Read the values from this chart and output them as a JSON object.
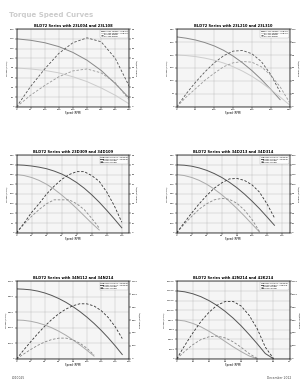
{
  "page_title": "Torque Speed Curves",
  "footer_left": "L010025",
  "footer_right": "December 2012",
  "page_bg": "#2a2a2a",
  "content_bg": "#ffffff",
  "header_bg": "#1a1a1a",
  "charts": [
    {
      "title": "BLD72 Series with 23L004 and 23L108",
      "xlabel": "Speed (RPM)",
      "ylabel_left": "Torque (oz-in)",
      "ylabel_right": "Power (Watts)",
      "legend": [
        "23L004 Torque - Unipolar",
        "23L108 Torque - Unipolar",
        "23L004 Power",
        "23L108 Power"
      ],
      "torque1": [
        [
          0,
          140
        ],
        [
          50,
          137
        ],
        [
          100,
          132
        ],
        [
          150,
          124
        ],
        [
          200,
          112
        ],
        [
          250,
          96
        ],
        [
          300,
          75
        ],
        [
          350,
          48
        ],
        [
          400,
          18
        ]
      ],
      "torque2": [
        [
          0,
          80
        ],
        [
          50,
          78
        ],
        [
          100,
          75
        ],
        [
          150,
          70
        ],
        [
          200,
          62
        ],
        [
          250,
          52
        ],
        [
          300,
          39
        ],
        [
          350,
          24
        ],
        [
          400,
          6
        ]
      ],
      "power1": [
        [
          0,
          0
        ],
        [
          50,
          21
        ],
        [
          100,
          39
        ],
        [
          150,
          55
        ],
        [
          200,
          66
        ],
        [
          250,
          71
        ],
        [
          300,
          67
        ],
        [
          350,
          50
        ],
        [
          400,
          21
        ]
      ],
      "power2": [
        [
          0,
          0
        ],
        [
          50,
          12
        ],
        [
          100,
          22
        ],
        [
          150,
          31
        ],
        [
          200,
          37
        ],
        [
          250,
          39
        ],
        [
          300,
          35
        ],
        [
          350,
          25
        ],
        [
          400,
          7
        ]
      ],
      "xlim": [
        0,
        400
      ],
      "ylim_left": [
        0,
        160
      ],
      "ylim_right": [
        0,
        80
      ],
      "torque_colors": [
        "#888888",
        "#cccccc"
      ],
      "power_colors": [
        "#555555",
        "#999999"
      ]
    },
    {
      "title": "BLD72 Series with 23L210 and 23L310",
      "xlabel": "Speed (RPM)",
      "ylabel_left": "Torque (oz-in)",
      "ylabel_right": "Power (Watts)",
      "legend": [
        "23L210 Torque - Unipolar",
        "23L310 Torque - Unipolar",
        "23L210 Power",
        "23L310 Power"
      ],
      "torque1": [
        [
          0,
          270
        ],
        [
          25,
          265
        ],
        [
          50,
          258
        ],
        [
          75,
          248
        ],
        [
          100,
          235
        ],
        [
          125,
          218
        ],
        [
          150,
          196
        ],
        [
          175,
          170
        ],
        [
          200,
          140
        ],
        [
          225,
          106
        ],
        [
          250,
          68
        ],
        [
          275,
          28
        ]
      ],
      "torque2": [
        [
          0,
          200
        ],
        [
          25,
          198
        ],
        [
          50,
          194
        ],
        [
          75,
          188
        ],
        [
          100,
          180
        ],
        [
          125,
          169
        ],
        [
          150,
          155
        ],
        [
          175,
          138
        ],
        [
          200,
          118
        ],
        [
          225,
          94
        ],
        [
          250,
          67
        ],
        [
          275,
          38
        ],
        [
          300,
          8
        ]
      ],
      "power1": [
        [
          0,
          0
        ],
        [
          25,
          20
        ],
        [
          50,
          38
        ],
        [
          75,
          54
        ],
        [
          100,
          68
        ],
        [
          125,
          79
        ],
        [
          150,
          86
        ],
        [
          175,
          87
        ],
        [
          200,
          82
        ],
        [
          225,
          70
        ],
        [
          250,
          50
        ],
        [
          275,
          23
        ]
      ],
      "power2": [
        [
          0,
          0
        ],
        [
          25,
          15
        ],
        [
          50,
          28
        ],
        [
          75,
          41
        ],
        [
          100,
          52
        ],
        [
          125,
          62
        ],
        [
          150,
          68
        ],
        [
          175,
          70
        ],
        [
          200,
          69
        ],
        [
          225,
          62
        ],
        [
          250,
          49
        ],
        [
          275,
          31
        ],
        [
          300,
          7
        ]
      ],
      "xlim": [
        0,
        300
      ],
      "ylim_left": [
        0,
        300
      ],
      "ylim_right": [
        0,
        120
      ],
      "torque_colors": [
        "#888888",
        "#cccccc"
      ],
      "power_colors": [
        "#555555",
        "#999999"
      ]
    },
    {
      "title": "BLD72 Series with 23D309 and 34D109",
      "xlabel": "Speed (RPM)",
      "ylabel_left": "Torque (oz-in)",
      "ylabel_right": "Power (Watts)",
      "legend": [
        "23D309 Torque - Unipolar",
        "34D109 Torque - Unipolar",
        "23D309 Power",
        "34D109 Power"
      ],
      "torque1": [
        [
          0,
          300
        ],
        [
          10,
          295
        ],
        [
          20,
          285
        ],
        [
          30,
          270
        ],
        [
          40,
          250
        ],
        [
          50,
          225
        ],
        [
          60,
          195
        ],
        [
          70,
          162
        ],
        [
          80,
          126
        ],
        [
          90,
          88
        ],
        [
          100,
          50
        ],
        [
          110,
          15
        ]
      ],
      "torque2": [
        [
          0,
          350
        ],
        [
          10,
          348
        ],
        [
          20,
          344
        ],
        [
          30,
          338
        ],
        [
          40,
          330
        ],
        [
          50,
          318
        ],
        [
          60,
          303
        ],
        [
          70,
          283
        ],
        [
          80,
          259
        ],
        [
          90,
          230
        ],
        [
          100,
          196
        ],
        [
          110,
          158
        ],
        [
          120,
          116
        ],
        [
          130,
          72
        ],
        [
          140,
          26
        ]
      ],
      "power1": [
        [
          0,
          0
        ],
        [
          10,
          9
        ],
        [
          20,
          17
        ],
        [
          30,
          24
        ],
        [
          40,
          30
        ],
        [
          50,
          34
        ],
        [
          60,
          34
        ],
        [
          70,
          34
        ],
        [
          80,
          30
        ],
        [
          90,
          24
        ],
        [
          100,
          15
        ],
        [
          110,
          5
        ]
      ],
      "power2": [
        [
          0,
          0
        ],
        [
          10,
          10
        ],
        [
          20,
          21
        ],
        [
          30,
          30
        ],
        [
          40,
          40
        ],
        [
          50,
          48
        ],
        [
          60,
          55
        ],
        [
          70,
          60
        ],
        [
          80,
          63
        ],
        [
          90,
          63
        ],
        [
          100,
          59
        ],
        [
          110,
          53
        ],
        [
          120,
          42
        ],
        [
          130,
          28
        ],
        [
          140,
          11
        ]
      ],
      "xlim": [
        0,
        150
      ],
      "ylim_left": [
        0,
        400
      ],
      "ylim_right": [
        0,
        80
      ],
      "torque_colors": [
        "#aaaaaa",
        "#555555"
      ],
      "power_colors": [
        "#888888",
        "#333333"
      ]
    },
    {
      "title": "BLD72 Series with 34D213 and 34D314",
      "xlabel": "Speed (RPM)",
      "ylabel_left": "Torque (oz-in)",
      "ylabel_right": "Power (Watts)",
      "legend": [
        "34D213 Torque - Unipolar",
        "34D314 Torque - Unipolar",
        "34D213 Power",
        "34D314 Power"
      ],
      "torque1": [
        [
          0,
          600
        ],
        [
          10,
          590
        ],
        [
          20,
          570
        ],
        [
          30,
          540
        ],
        [
          40,
          500
        ],
        [
          50,
          450
        ],
        [
          60,
          392
        ],
        [
          70,
          325
        ],
        [
          80,
          252
        ],
        [
          90,
          174
        ],
        [
          100,
          92
        ],
        [
          110,
          10
        ]
      ],
      "torque2": [
        [
          0,
          700
        ],
        [
          10,
          696
        ],
        [
          20,
          686
        ],
        [
          30,
          668
        ],
        [
          40,
          643
        ],
        [
          50,
          610
        ],
        [
          60,
          570
        ],
        [
          70,
          521
        ],
        [
          80,
          465
        ],
        [
          90,
          400
        ],
        [
          100,
          328
        ],
        [
          110,
          250
        ],
        [
          120,
          165
        ],
        [
          130,
          78
        ]
      ],
      "power1": [
        [
          0,
          0
        ],
        [
          10,
          18
        ],
        [
          20,
          34
        ],
        [
          30,
          49
        ],
        [
          40,
          60
        ],
        [
          50,
          68
        ],
        [
          60,
          71
        ],
        [
          70,
          69
        ],
        [
          80,
          61
        ],
        [
          90,
          47
        ],
        [
          100,
          28
        ],
        [
          110,
          3
        ]
      ],
      "power2": [
        [
          0,
          0
        ],
        [
          10,
          21
        ],
        [
          20,
          41
        ],
        [
          30,
          60
        ],
        [
          40,
          77
        ],
        [
          50,
          92
        ],
        [
          60,
          103
        ],
        [
          70,
          111
        ],
        [
          80,
          112
        ],
        [
          90,
          108
        ],
        [
          100,
          99
        ],
        [
          110,
          84
        ],
        [
          120,
          60
        ],
        [
          130,
          31
        ]
      ],
      "xlim": [
        0,
        150
      ],
      "ylim_left": [
        0,
        800
      ],
      "ylim_right": [
        0,
        160
      ],
      "torque_colors": [
        "#aaaaaa",
        "#555555"
      ],
      "power_colors": [
        "#888888",
        "#333333"
      ]
    },
    {
      "title": "BLD72 Series with 34N112 and 34N214",
      "xlabel": "Speed (RPM)",
      "ylabel_left": "Torque (oz-in)",
      "ylabel_right": "Power (Watts)",
      "legend": [
        "34N112 Torque - Unipolar",
        "34N214 Torque - Unipolar",
        "34N112 Power",
        "34N214 Power"
      ],
      "torque1": [
        [
          0,
          2500
        ],
        [
          10,
          2480
        ],
        [
          20,
          2420
        ],
        [
          30,
          2320
        ],
        [
          40,
          2180
        ],
        [
          50,
          2000
        ],
        [
          60,
          1780
        ],
        [
          70,
          1520
        ],
        [
          80,
          1225
        ],
        [
          90,
          900
        ],
        [
          100,
          550
        ],
        [
          110,
          180
        ]
      ],
      "torque2": [
        [
          0,
          4500
        ],
        [
          10,
          4480
        ],
        [
          20,
          4440
        ],
        [
          30,
          4360
        ],
        [
          40,
          4240
        ],
        [
          50,
          4080
        ],
        [
          60,
          3880
        ],
        [
          70,
          3640
        ],
        [
          80,
          3360
        ],
        [
          90,
          3040
        ],
        [
          100,
          2680
        ],
        [
          110,
          2280
        ],
        [
          120,
          1840
        ],
        [
          130,
          1360
        ],
        [
          140,
          840
        ],
        [
          150,
          280
        ]
      ],
      "power1": [
        [
          0,
          0
        ],
        [
          10,
          74
        ],
        [
          20,
          144
        ],
        [
          30,
          208
        ],
        [
          40,
          261
        ],
        [
          50,
          299
        ],
        [
          60,
          320
        ],
        [
          70,
          321
        ],
        [
          80,
          293
        ],
        [
          90,
          242
        ],
        [
          100,
          164
        ],
        [
          110,
          59
        ]
      ],
      "power2": [
        [
          0,
          0
        ],
        [
          10,
          134
        ],
        [
          20,
          263
        ],
        [
          30,
          388
        ],
        [
          40,
          504
        ],
        [
          50,
          608
        ],
        [
          60,
          697
        ],
        [
          70,
          768
        ],
        [
          80,
          820
        ],
        [
          90,
          851
        ],
        [
          100,
          849
        ],
        [
          110,
          816
        ],
        [
          120,
          746
        ],
        [
          130,
          640
        ],
        [
          140,
          496
        ],
        [
          150,
          314
        ]
      ],
      "xlim": [
        0,
        160
      ],
      "ylim_left": [
        0,
        5000
      ],
      "ylim_right": [
        0,
        1200
      ],
      "torque_colors": [
        "#aaaaaa",
        "#555555"
      ],
      "power_colors": [
        "#888888",
        "#333333"
      ]
    },
    {
      "title": "BLD72 Series with 42N214 and 42K214",
      "xlabel": "Speed (RPM)",
      "ylabel_left": "Torque (oz-in)",
      "ylabel_right": "Power (Watts)",
      "legend": [
        "42N214 Torque - Unipolar",
        "42K214 Torque - Unipolar",
        "42N214 Power",
        "42K214 Power"
      ],
      "torque1": [
        [
          0,
          8000
        ],
        [
          5,
          7800
        ],
        [
          10,
          7300
        ],
        [
          15,
          6600
        ],
        [
          20,
          5700
        ],
        [
          25,
          4700
        ],
        [
          30,
          3600
        ],
        [
          35,
          2500
        ],
        [
          40,
          1500
        ],
        [
          45,
          600
        ],
        [
          50,
          50
        ]
      ],
      "torque2": [
        [
          0,
          14000
        ],
        [
          5,
          13800
        ],
        [
          10,
          13400
        ],
        [
          15,
          12800
        ],
        [
          20,
          12000
        ],
        [
          25,
          11000
        ],
        [
          30,
          9800
        ],
        [
          35,
          8400
        ],
        [
          40,
          6800
        ],
        [
          45,
          5000
        ],
        [
          50,
          3100
        ],
        [
          55,
          1100
        ],
        [
          60,
          50
        ]
      ],
      "power1": [
        [
          0,
          0
        ],
        [
          5,
          117
        ],
        [
          10,
          219
        ],
        [
          15,
          298
        ],
        [
          20,
          341
        ],
        [
          25,
          353
        ],
        [
          30,
          325
        ],
        [
          35,
          264
        ],
        [
          40,
          179
        ],
        [
          45,
          81
        ],
        [
          50,
          8
        ]
      ],
      "power2": [
        [
          0,
          0
        ],
        [
          5,
          208
        ],
        [
          10,
          400
        ],
        [
          15,
          576
        ],
        [
          20,
          718
        ],
        [
          25,
          827
        ],
        [
          30,
          884
        ],
        [
          35,
          887
        ],
        [
          40,
          816
        ],
        [
          45,
          671
        ],
        [
          50,
          464
        ],
        [
          55,
          181
        ],
        [
          60,
          8
        ]
      ],
      "xlim": [
        0,
        70
      ],
      "ylim_left": [
        0,
        16000
      ],
      "ylim_right": [
        0,
        1200
      ],
      "torque_colors": [
        "#aaaaaa",
        "#555555"
      ],
      "power_colors": [
        "#888888",
        "#333333"
      ]
    }
  ]
}
